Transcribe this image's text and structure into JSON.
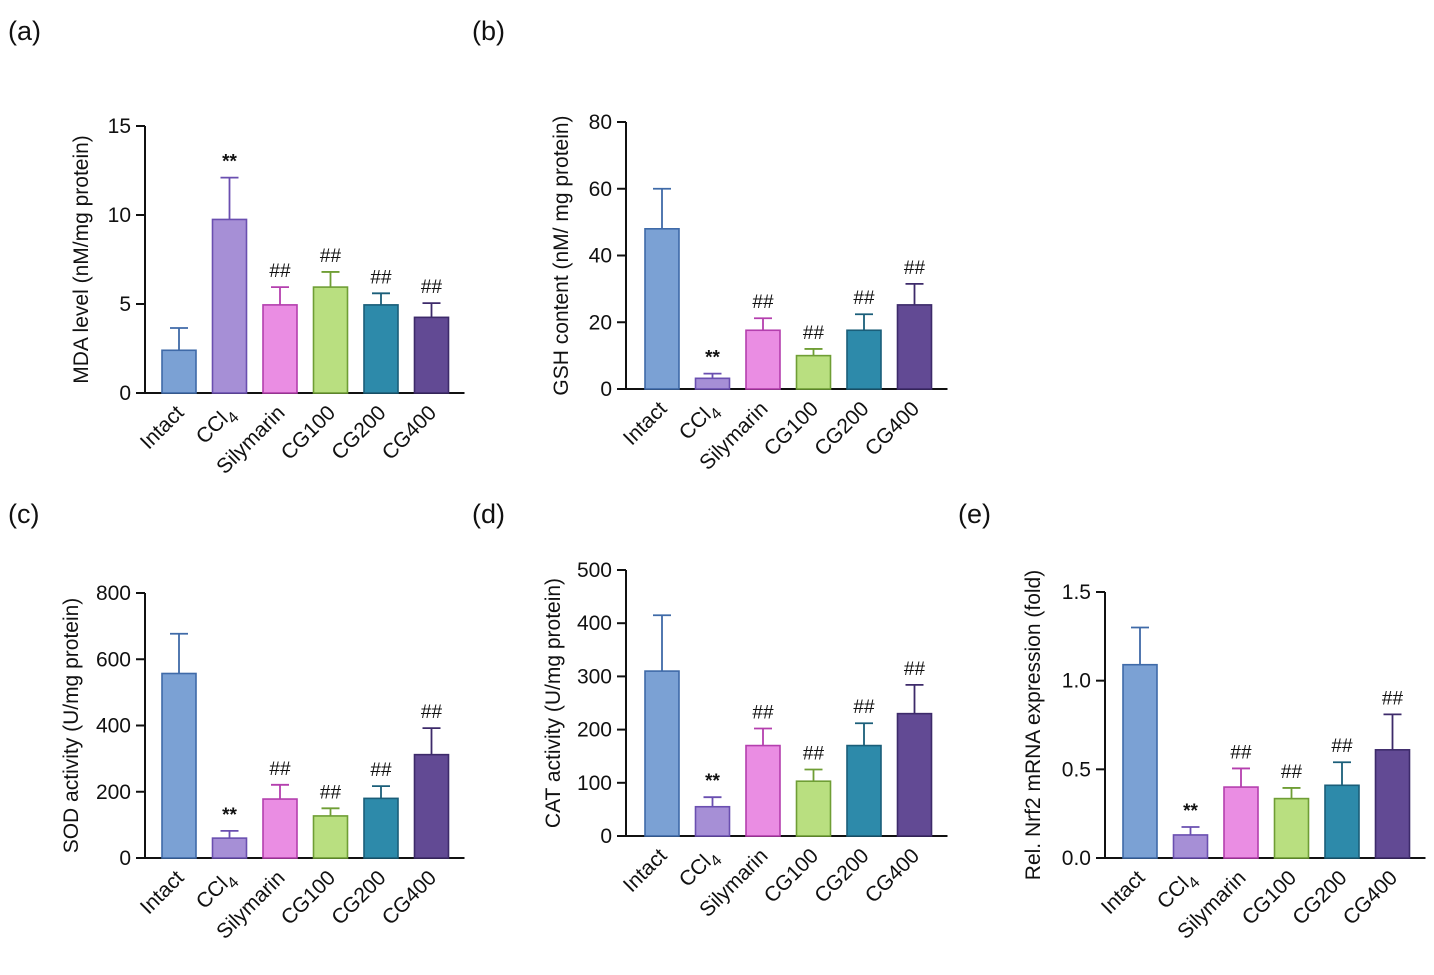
{
  "colors": {
    "Intact": "#7ba1d4",
    "CCl4": "#a68fd6",
    "Silymarin": "#ea8de3",
    "CG100": "#b9df80",
    "CG200": "#2d8aaa",
    "CG400": "#624a94",
    "Intact_edge": "#3f6aa8",
    "CCl4_edge": "#6a4fb0",
    "Silymarin_edge": "#b43fae",
    "CG100_edge": "#6f9e35",
    "CG200_edge": "#1a5e79",
    "CG400_edge": "#3d2a6a",
    "axis": "#111111"
  },
  "chart_data": [
    {
      "panel": "(a)",
      "type": "bar",
      "categories": [
        "Intact",
        "CCl4",
        "Silymarin",
        "CG100",
        "CG200",
        "CG400"
      ],
      "values": [
        2.4,
        9.75,
        4.95,
        5.95,
        4.95,
        4.25
      ],
      "errors": [
        1.25,
        2.35,
        1.0,
        0.85,
        0.65,
        0.8
      ],
      "annotations": [
        "",
        "**",
        "##",
        "##",
        "##",
        "##"
      ],
      "ylabel": "MDA level (nM/mg protein)",
      "ylim": [
        0,
        15
      ],
      "yticks": [
        "0",
        "5",
        "10",
        "15"
      ]
    },
    {
      "panel": "(b)",
      "type": "bar",
      "categories": [
        "Intact",
        "CCl4",
        "Silymarin",
        "CG100",
        "CG200",
        "CG400"
      ],
      "values": [
        48,
        3.2,
        17.6,
        10,
        17.6,
        25.2
      ],
      "errors": [
        12,
        1.4,
        3.6,
        2.0,
        4.8,
        6.3
      ],
      "annotations": [
        "",
        "**",
        "##",
        "##",
        "##",
        "##"
      ],
      "ylabel": "GSH content (nM/ mg protein)",
      "ylim": [
        0,
        80
      ],
      "yticks": [
        "0",
        "20",
        "40",
        "60",
        "80"
      ]
    },
    {
      "panel": "(c)",
      "type": "bar",
      "categories": [
        "Intact",
        "CCl4",
        "Silymarin",
        "CG100",
        "CG200",
        "CG400"
      ],
      "values": [
        557,
        60,
        178,
        127,
        180,
        312
      ],
      "errors": [
        120,
        22,
        43,
        23,
        37,
        80
      ],
      "annotations": [
        "",
        "**",
        "##",
        "##",
        "##",
        "##"
      ],
      "ylabel": "SOD activity (U/mg protein)",
      "ylim": [
        0,
        800
      ],
      "yticks": [
        "0",
        "200",
        "400",
        "600",
        "800"
      ]
    },
    {
      "panel": "(d)",
      "type": "bar",
      "categories": [
        "Intact",
        "CCl4",
        "Silymarin",
        "CG100",
        "CG200",
        "CG400"
      ],
      "values": [
        310,
        55,
        170,
        103,
        170,
        230
      ],
      "errors": [
        105,
        18,
        32,
        22,
        42,
        54
      ],
      "annotations": [
        "",
        "**",
        "##",
        "##",
        "##",
        "##"
      ],
      "ylabel": "CAT activity (U/mg protein)",
      "ylim": [
        0,
        500
      ],
      "yticks": [
        "0",
        "100",
        "200",
        "300",
        "400",
        "500"
      ]
    },
    {
      "panel": "(e)",
      "type": "bar",
      "categories": [
        "Intact",
        "CCl4",
        "Silymarin",
        "CG100",
        "CG200",
        "CG400"
      ],
      "values": [
        1.09,
        0.13,
        0.4,
        0.335,
        0.41,
        0.61
      ],
      "errors": [
        0.21,
        0.045,
        0.105,
        0.06,
        0.13,
        0.2
      ],
      "annotations": [
        "",
        "**",
        "##",
        "##",
        "##",
        "##"
      ],
      "ylabel": "Rel. Nrf2 mRNA expression (fold)",
      "ylim": [
        0,
        1.5
      ],
      "yticks": [
        "0.0",
        "0.5",
        "1.0",
        "1.5"
      ]
    }
  ]
}
